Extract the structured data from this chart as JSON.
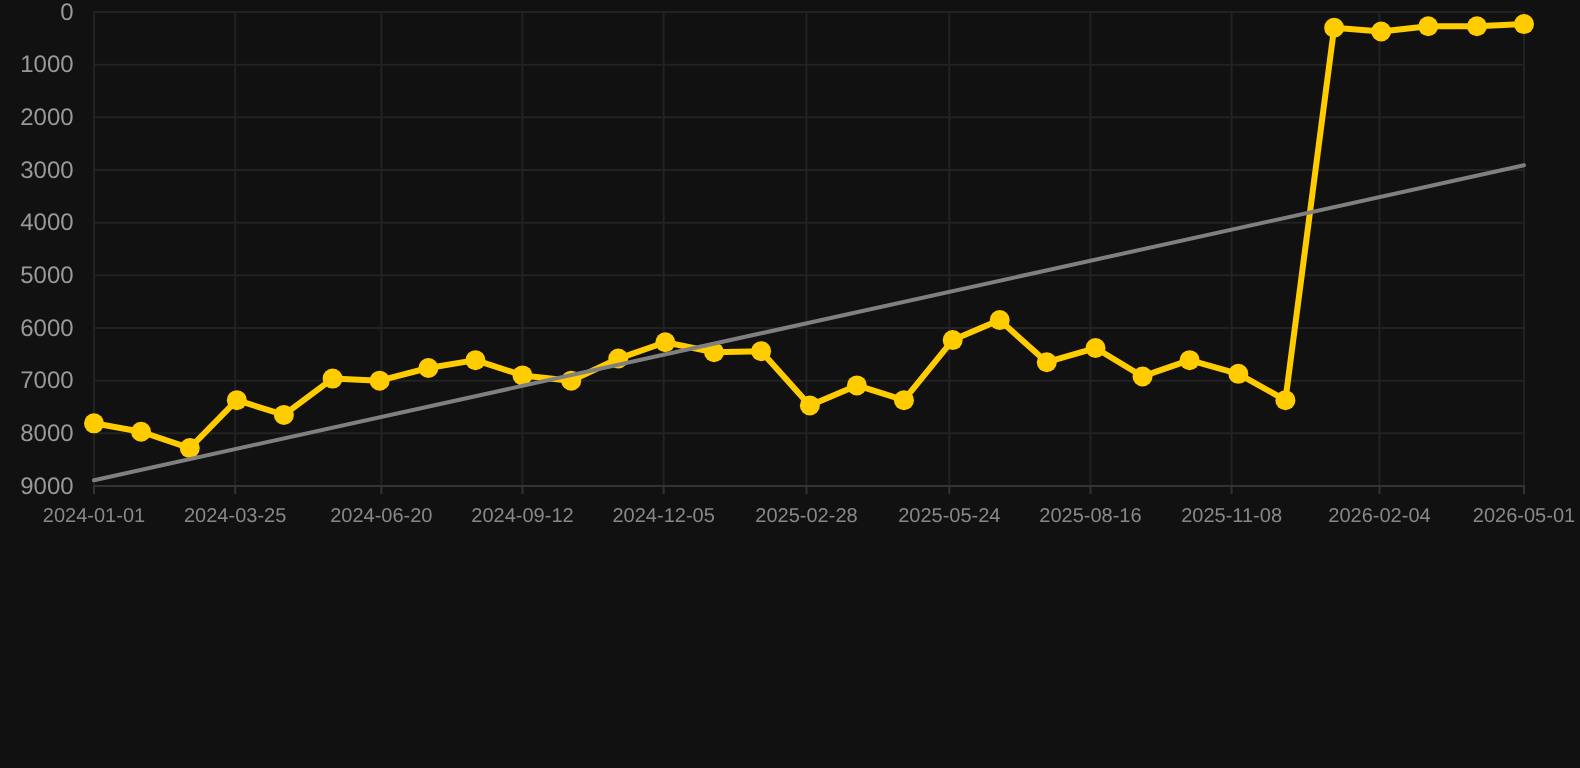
{
  "chart_data": {
    "type": "line",
    "x": [
      "2024-01-01",
      "2024-01-29",
      "2024-02-27",
      "2024-03-26",
      "2024-04-23",
      "2024-05-22",
      "2024-06-19",
      "2024-07-18",
      "2024-08-15",
      "2024-09-12",
      "2024-10-11",
      "2024-11-08",
      "2024-12-06",
      "2025-01-04",
      "2025-02-01",
      "2025-03-02",
      "2025-03-30",
      "2025-04-27",
      "2025-05-26",
      "2025-06-23",
      "2025-07-21",
      "2025-08-19",
      "2025-09-16",
      "2025-10-14",
      "2025-11-12",
      "2025-12-10",
      "2026-01-08",
      "2026-02-05",
      "2026-03-05",
      "2026-04-03",
      "2026-05-01"
    ],
    "series": [
      {
        "color": "#ffcc00",
        "marker": "circle",
        "values": [
          7810,
          7970,
          8280,
          7370,
          7650,
          6960,
          7000,
          6760,
          6610,
          6900,
          7000,
          6580,
          6270,
          6460,
          6440,
          7470,
          7090,
          7370,
          6230,
          5850,
          6650,
          6380,
          6920,
          6610,
          6870,
          7370,
          300,
          370,
          270,
          270,
          230
        ]
      },
      {
        "color": "#808080",
        "marker": "none",
        "x": [
          "2024-01-01",
          "2026-05-01"
        ],
        "values": [
          8890,
          2910
        ]
      }
    ],
    "xlim": [
      "2024-01-01",
      "2026-05-01"
    ],
    "xticks": [
      "2024-01-01",
      "2024-03-25",
      "2024-06-20",
      "2024-09-12",
      "2024-12-05",
      "2025-02-28",
      "2025-05-24",
      "2025-08-16",
      "2025-11-08",
      "2026-02-04",
      "2026-05-01"
    ],
    "ylim": [
      9000,
      0
    ],
    "yticks": [
      0,
      1000,
      2000,
      3000,
      4000,
      5000,
      6000,
      7000,
      8000,
      9000
    ],
    "grid": true,
    "line_style": "solid"
  }
}
